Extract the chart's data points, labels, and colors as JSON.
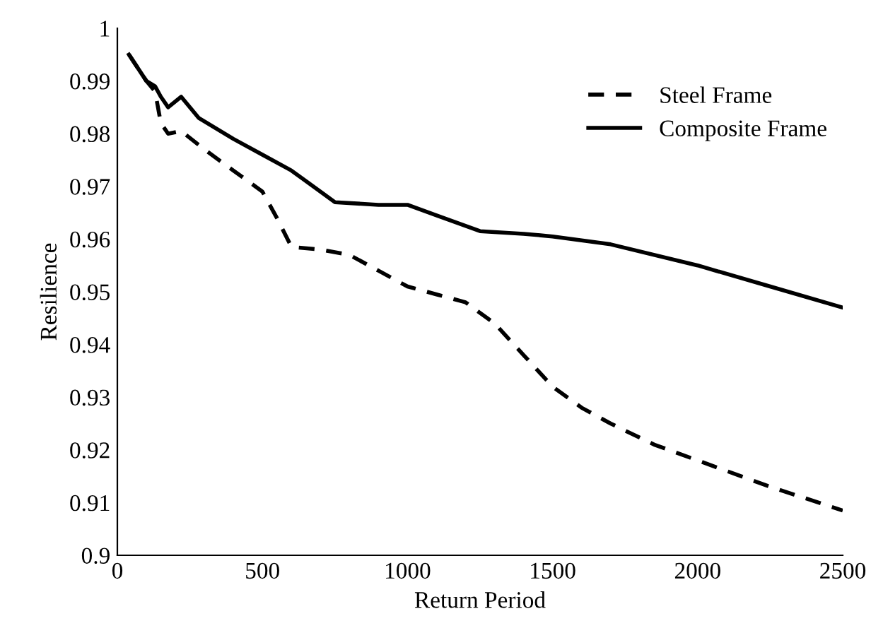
{
  "chart_data": {
    "type": "line",
    "xlabel": "Return Period",
    "ylabel": "Resilience",
    "xlim": [
      0,
      2500
    ],
    "xticks": [
      0,
      500,
      1000,
      1500,
      2000,
      2500
    ],
    "ylim": [
      0.9,
      1
    ],
    "yticks": [
      0.9,
      0.91,
      0.92,
      0.93,
      0.94,
      0.95,
      0.96,
      0.97,
      0.98,
      0.99,
      1
    ],
    "grid": false,
    "legend": "top right",
    "marker": "none",
    "series": [
      {
        "name": "Steel Frame",
        "color": "#000000",
        "line_style": "dashed",
        "x": [
          40,
          100,
          130,
          150,
          175,
          220,
          300,
          400,
          500,
          550,
          600,
          700,
          800,
          900,
          1000,
          1100,
          1200,
          1300,
          1400,
          1500,
          1600,
          1700,
          1850,
          2000,
          2250,
          2500
        ],
        "values": [
          0.995,
          0.99,
          0.988,
          0.982,
          0.98,
          0.9805,
          0.977,
          0.973,
          0.969,
          0.964,
          0.9585,
          0.958,
          0.957,
          0.954,
          0.951,
          0.9495,
          0.948,
          0.944,
          0.938,
          0.932,
          0.928,
          0.925,
          0.921,
          0.918,
          0.913,
          0.9085
        ]
      },
      {
        "name": "Composite Frame",
        "color": "#000000",
        "line_style": "solid",
        "x": [
          40,
          100,
          130,
          150,
          175,
          220,
          280,
          400,
          500,
          600,
          700,
          750,
          900,
          1000,
          1100,
          1250,
          1400,
          1500,
          1700,
          2000,
          2250,
          2500
        ],
        "values": [
          0.995,
          0.99,
          0.989,
          0.987,
          0.985,
          0.987,
          0.983,
          0.979,
          0.976,
          0.973,
          0.969,
          0.967,
          0.9665,
          0.9665,
          0.9645,
          0.9615,
          0.961,
          0.9605,
          0.959,
          0.955,
          0.951,
          0.947
        ]
      }
    ]
  }
}
